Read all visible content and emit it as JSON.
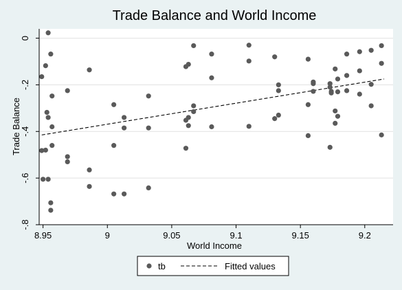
{
  "chart_data": {
    "type": "scatter",
    "title": "Trade Balance and World Income",
    "xlabel": "World Income",
    "ylabel": "Trade Balance",
    "xlim": [
      8.947,
      9.222
    ],
    "ylim": [
      -0.8,
      0.04
    ],
    "x_ticks": [
      8.95,
      9,
      9.05,
      9.1,
      9.15,
      9.2
    ],
    "x_tick_labels": [
      "8.95",
      "9",
      "9.05",
      "9.1",
      "9.15",
      "9.2"
    ],
    "y_ticks": [
      0,
      -0.2,
      -0.4,
      -0.6,
      -0.8
    ],
    "y_tick_labels": [
      "0",
      "-.2",
      "-.4",
      "-.6",
      "-.8"
    ],
    "grid": "horizontal",
    "legend_position": "bottom",
    "series": [
      {
        "name": "tb",
        "kind": "points",
        "color": "#5a5a5a",
        "points": [
          [
            8.949,
            -0.165
          ],
          [
            8.949,
            -0.482
          ],
          [
            8.95,
            -0.605
          ],
          [
            8.952,
            -0.118
          ],
          [
            8.952,
            -0.48
          ],
          [
            8.953,
            -0.318
          ],
          [
            8.954,
            0.023
          ],
          [
            8.954,
            -0.34
          ],
          [
            8.954,
            -0.605
          ],
          [
            8.956,
            -0.068
          ],
          [
            8.956,
            -0.706
          ],
          [
            8.956,
            -0.738
          ],
          [
            8.957,
            -0.248
          ],
          [
            8.957,
            -0.38
          ],
          [
            8.957,
            -0.46
          ],
          [
            8.969,
            -0.225
          ],
          [
            8.969,
            -0.508
          ],
          [
            8.969,
            -0.53
          ],
          [
            8.986,
            -0.136
          ],
          [
            8.986,
            -0.565
          ],
          [
            8.986,
            -0.636
          ],
          [
            9.005,
            -0.285
          ],
          [
            9.005,
            -0.46
          ],
          [
            9.005,
            -0.668
          ],
          [
            9.013,
            -0.34
          ],
          [
            9.013,
            -0.385
          ],
          [
            9.013,
            -0.668
          ],
          [
            9.032,
            -0.248
          ],
          [
            9.032,
            -0.385
          ],
          [
            9.032,
            -0.642
          ],
          [
            9.061,
            -0.122
          ],
          [
            9.061,
            -0.352
          ],
          [
            9.061,
            -0.472
          ],
          [
            9.063,
            -0.112
          ],
          [
            9.063,
            -0.34
          ],
          [
            9.063,
            -0.375
          ],
          [
            9.067,
            -0.032
          ],
          [
            9.067,
            -0.29
          ],
          [
            9.067,
            -0.315
          ],
          [
            9.081,
            -0.068
          ],
          [
            9.081,
            -0.17
          ],
          [
            9.081,
            -0.38
          ],
          [
            9.11,
            -0.03
          ],
          [
            9.11,
            -0.098
          ],
          [
            9.11,
            -0.378
          ],
          [
            9.13,
            -0.08
          ],
          [
            9.13,
            -0.345
          ],
          [
            9.133,
            -0.2
          ],
          [
            9.133,
            -0.225
          ],
          [
            9.133,
            -0.33
          ],
          [
            9.156,
            -0.09
          ],
          [
            9.156,
            -0.285
          ],
          [
            9.156,
            -0.418
          ],
          [
            9.16,
            -0.188
          ],
          [
            9.16,
            -0.195
          ],
          [
            9.16,
            -0.228
          ],
          [
            9.173,
            -0.195
          ],
          [
            9.173,
            -0.21
          ],
          [
            9.173,
            -0.468
          ],
          [
            9.174,
            -0.228
          ],
          [
            9.174,
            -0.235
          ],
          [
            9.177,
            -0.132
          ],
          [
            9.177,
            -0.312
          ],
          [
            9.177,
            -0.365
          ],
          [
            9.179,
            -0.175
          ],
          [
            9.179,
            -0.23
          ],
          [
            9.179,
            -0.335
          ],
          [
            9.186,
            -0.068
          ],
          [
            9.186,
            -0.16
          ],
          [
            9.186,
            -0.225
          ],
          [
            9.196,
            -0.058
          ],
          [
            9.196,
            -0.14
          ],
          [
            9.196,
            -0.24
          ],
          [
            9.205,
            -0.052
          ],
          [
            9.205,
            -0.198
          ],
          [
            9.205,
            -0.29
          ],
          [
            9.213,
            -0.032
          ],
          [
            9.213,
            -0.108
          ],
          [
            9.213,
            -0.415
          ]
        ]
      },
      {
        "name": "Fitted values",
        "kind": "line",
        "style": "dashed",
        "color": "#000000",
        "points": [
          [
            8.949,
            -0.415
          ],
          [
            9.215,
            -0.175
          ]
        ]
      }
    ]
  },
  "colors": {
    "background": "#eaf2f3",
    "plot_area": "#ffffff",
    "grid": "#e1e1e1",
    "marker": "#5a5a5a",
    "fit_line": "#000000"
  }
}
